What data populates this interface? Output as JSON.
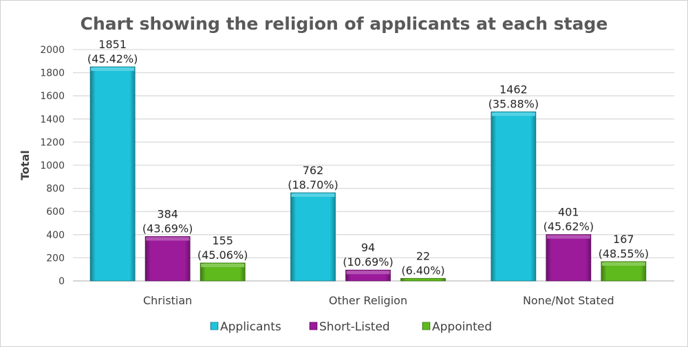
{
  "chart_data": {
    "type": "bar",
    "title": "Chart showing the religion of applicants at each stage",
    "xlabel": "",
    "ylabel": "Total",
    "ylim": [
      0,
      2000
    ],
    "yticks": [
      0,
      200,
      400,
      600,
      800,
      1000,
      1200,
      1400,
      1600,
      1800,
      2000
    ],
    "grid": true,
    "legend_position": "bottom",
    "categories": [
      "Christian",
      "Other Religion",
      "None/Not Stated"
    ],
    "series": [
      {
        "name": "Applicants",
        "color": "#1ec3db",
        "values": [
          1851,
          762,
          1462
        ],
        "percent_labels": [
          "(45.42%)",
          "(18.70%)",
          "(35.88%)"
        ]
      },
      {
        "name": "Short-Listed",
        "color": "#9b1b9b",
        "values": [
          384,
          94,
          401
        ],
        "percent_labels": [
          "(43.69%)",
          "(10.69%)",
          "(45.62%)"
        ]
      },
      {
        "name": "Appointed",
        "color": "#5fba1e",
        "values": [
          155,
          22,
          167
        ],
        "percent_labels": [
          "(45.06%)",
          "(6.40%)",
          "(48.55%)"
        ]
      }
    ]
  }
}
